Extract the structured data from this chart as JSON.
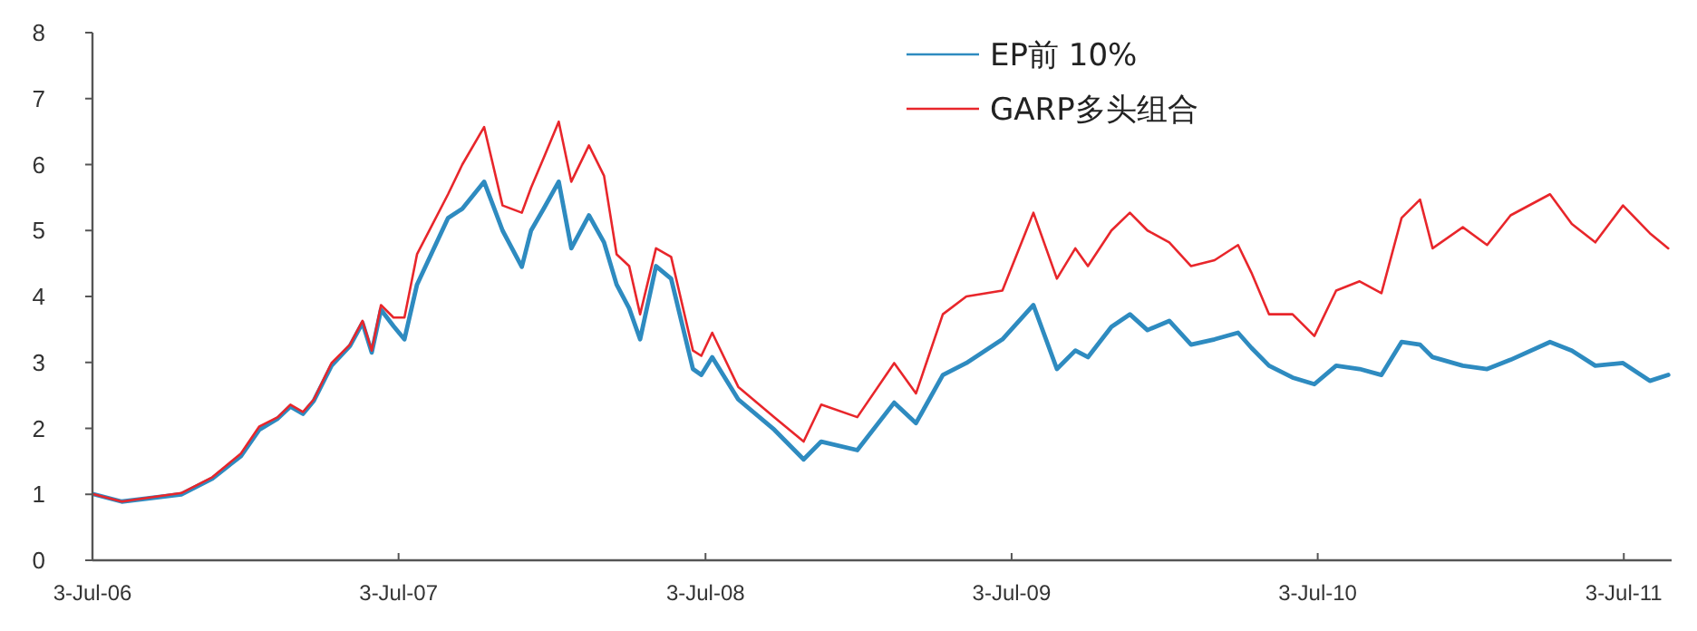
{
  "chart_data": {
    "type": "line",
    "x": [
      "2006-07-05",
      "2006-08-07",
      "2006-10-17",
      "2006-11-23",
      "2006-12-27",
      "2007-01-18",
      "2007-02-09",
      "2007-02-24",
      "2007-03-11",
      "2007-03-24",
      "2007-04-14",
      "2007-05-06",
      "2007-05-21",
      "2007-06-01",
      "2007-06-12",
      "2007-06-27",
      "2007-07-10",
      "2007-07-25",
      "2007-08-31",
      "2007-09-17",
      "2007-10-13",
      "2007-11-04",
      "2007-11-27",
      "2007-12-08",
      "2007-12-23",
      "2008-01-10",
      "2008-01-25",
      "2008-02-15",
      "2008-03-04",
      "2008-03-19",
      "2008-04-03",
      "2008-04-16",
      "2008-05-05",
      "2008-05-23",
      "2008-06-18",
      "2008-06-28",
      "2008-07-11",
      "2008-08-11",
      "2008-09-23",
      "2008-10-28",
      "2008-11-18",
      "2008-12-31",
      "2009-02-13",
      "2009-03-11",
      "2009-04-12",
      "2009-05-10",
      "2009-06-22",
      "2009-07-29",
      "2009-08-26",
      "2009-09-17",
      "2009-10-02",
      "2009-10-30",
      "2009-11-21",
      "2009-12-12",
      "2010-01-07",
      "2010-02-02",
      "2010-03-02",
      "2010-03-30",
      "2010-04-15",
      "2010-05-06",
      "2010-06-03",
      "2010-06-29",
      "2010-07-25",
      "2010-08-22",
      "2010-09-17",
      "2010-10-11",
      "2010-11-02",
      "2010-11-17",
      "2010-12-23",
      "2011-01-21",
      "2011-02-18",
      "2011-04-06",
      "2011-05-02",
      "2011-05-30",
      "2011-07-02",
      "2011-08-03",
      "2011-08-25"
    ],
    "series": [
      {
        "name": "EP前 10%",
        "color": "#2e8bc0",
        "values": [
          1.0,
          0.89,
          1.0,
          1.24,
          1.58,
          1.98,
          2.15,
          2.33,
          2.22,
          2.42,
          2.95,
          3.25,
          3.6,
          3.15,
          3.8,
          3.55,
          3.35,
          4.18,
          5.19,
          5.33,
          5.74,
          5.0,
          4.45,
          5.0,
          5.33,
          5.74,
          4.73,
          5.23,
          4.82,
          4.18,
          3.82,
          3.35,
          4.46,
          4.27,
          2.9,
          2.81,
          3.08,
          2.44,
          1.98,
          1.53,
          1.8,
          1.67,
          2.39,
          2.08,
          2.81,
          2.99,
          3.35,
          3.87,
          2.9,
          3.18,
          3.08,
          3.54,
          3.73,
          3.49,
          3.63,
          3.27,
          3.35,
          3.45,
          3.22,
          2.95,
          2.77,
          2.67,
          2.95,
          2.9,
          2.81,
          3.31,
          3.27,
          3.08,
          2.95,
          2.9,
          3.04,
          3.31,
          3.18,
          2.95,
          2.99,
          2.72,
          2.81
        ]
      },
      {
        "name": "GARP多头组合",
        "color": "#e8262b",
        "values": [
          1.0,
          0.89,
          1.02,
          1.26,
          1.62,
          2.03,
          2.17,
          2.36,
          2.25,
          2.44,
          2.99,
          3.27,
          3.63,
          3.18,
          3.87,
          3.68,
          3.68,
          4.64,
          5.55,
          6.0,
          6.57,
          5.38,
          5.27,
          5.65,
          6.1,
          6.65,
          5.74,
          6.29,
          5.83,
          4.64,
          4.46,
          3.73,
          4.73,
          4.6,
          3.18,
          3.1,
          3.45,
          2.63,
          2.17,
          1.8,
          2.36,
          2.17,
          2.99,
          2.53,
          3.73,
          4.0,
          4.09,
          5.27,
          4.27,
          4.73,
          4.46,
          5.0,
          5.27,
          5.0,
          4.82,
          4.46,
          4.55,
          4.78,
          4.36,
          3.73,
          3.73,
          3.4,
          4.09,
          4.23,
          4.05,
          5.19,
          5.47,
          4.73,
          5.05,
          4.78,
          5.23,
          5.55,
          5.1,
          4.82,
          5.38,
          4.96,
          4.73
        ]
      }
    ],
    "xlim": [
      "2006-07-03",
      "2011-08-29"
    ],
    "xticks": [
      {
        "value": "2006-07-03",
        "label": "3-Jul-06"
      },
      {
        "value": "2007-07-03",
        "label": "3-Jul-07"
      },
      {
        "value": "2008-07-03",
        "label": "3-Jul-08"
      },
      {
        "value": "2009-07-03",
        "label": "3-Jul-09"
      },
      {
        "value": "2010-07-03",
        "label": "3-Jul-10"
      },
      {
        "value": "2011-07-03",
        "label": "3-Jul-11"
      }
    ],
    "ylim": [
      0,
      8
    ],
    "yticks": [
      0,
      1,
      2,
      3,
      4,
      5,
      6,
      7,
      8
    ],
    "legend": "top right",
    "grid": false,
    "marker": "none",
    "line_style": "solid"
  }
}
